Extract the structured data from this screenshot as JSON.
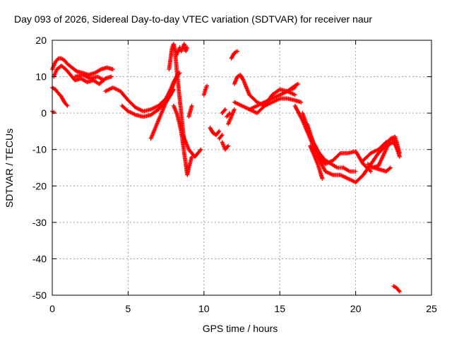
{
  "chart_data": {
    "type": "scatter",
    "title": "Day 093 of 2026, Sidereal Day-to-day VTEC variation (SDTVAR) for receiver naur",
    "xlabel": "GPS time / hours",
    "ylabel": "SDTVAR / TECUs",
    "xlim": [
      0,
      25
    ],
    "ylim": [
      -50,
      20
    ],
    "xticks": [
      0,
      5,
      10,
      15,
      20,
      25
    ],
    "yticks": [
      -50,
      -40,
      -30,
      -20,
      -10,
      0,
      10,
      20
    ],
    "grid": true,
    "marker": "+",
    "color": "#ff0000",
    "series": [
      {
        "name": "s1",
        "x": [
          0.0,
          0.2,
          0.4,
          0.6,
          0.8,
          1.0,
          1.3,
          1.6,
          2.0,
          2.4,
          2.8,
          3.2,
          3.6,
          4.0
        ],
        "y": [
          12,
          14,
          15,
          15,
          14.5,
          13.5,
          12.5,
          11.5,
          11,
          10.5,
          11,
          12,
          12.5,
          12
        ]
      },
      {
        "name": "s2",
        "x": [
          0.1,
          0.3,
          0.6,
          0.9,
          1.2,
          1.5,
          1.9,
          2.3,
          2.7,
          3.1,
          3.5,
          3.9
        ],
        "y": [
          10,
          12,
          13,
          12,
          10.5,
          9,
          9.5,
          8.5,
          9,
          8,
          9.5,
          10
        ]
      },
      {
        "name": "s3",
        "x": [
          0.0,
          0.2,
          0.4,
          0.6,
          0.8,
          1.0
        ],
        "y": [
          7,
          6.5,
          5.5,
          4.5,
          3,
          2
        ]
      },
      {
        "name": "s4",
        "x": [
          0.0,
          0.1
        ],
        "y": [
          0.5,
          0.3
        ]
      },
      {
        "name": "s5",
        "x": [
          1.5,
          2.0,
          2.5,
          3.0,
          3.4
        ],
        "y": [
          10,
          10.5,
          9.5,
          10,
          9
        ]
      },
      {
        "name": "s6",
        "x": [
          3.5,
          4.0,
          4.5,
          5.0,
          5.5,
          6.0,
          6.5,
          7.0,
          7.5,
          7.8,
          8.0,
          8.2,
          8.4
        ],
        "y": [
          6,
          7,
          6,
          3.5,
          1.5,
          0.5,
          1,
          2,
          4,
          6.5,
          8.5,
          10,
          11
        ]
      },
      {
        "name": "s7",
        "x": [
          4.6,
          5.0,
          5.5,
          6.0,
          6.5,
          7.0,
          7.5,
          7.8,
          8.0
        ],
        "y": [
          2,
          0.5,
          -0.5,
          -1,
          -0.5,
          1,
          3,
          5,
          6.5
        ]
      },
      {
        "name": "s8",
        "x": [
          6.5,
          6.8,
          7.1,
          7.4,
          7.7,
          8.0,
          8.3
        ],
        "y": [
          -7,
          -4,
          -1,
          2,
          5,
          8,
          11
        ]
      },
      {
        "name": "s9",
        "x": [
          7.7,
          7.8,
          7.9,
          8.0,
          8.1,
          8.2,
          8.3,
          8.4,
          8.5,
          8.6,
          8.7
        ],
        "y": [
          12,
          15,
          18,
          19,
          17,
          12,
          8,
          4,
          0,
          -4,
          -8
        ]
      },
      {
        "name": "s10",
        "x": [
          8.2,
          8.4,
          8.5,
          8.6,
          8.7,
          8.8,
          8.9
        ],
        "y": [
          16,
          18,
          17,
          18,
          19,
          17,
          18
        ]
      },
      {
        "name": "s11",
        "x": [
          8.0,
          8.2,
          8.4,
          8.5,
          8.6,
          8.7,
          8.8,
          8.9,
          9.0,
          9.2
        ],
        "y": [
          2,
          0,
          -3,
          -5,
          -8,
          -11,
          -14,
          -17,
          -15,
          -12
        ]
      },
      {
        "name": "s12",
        "x": [
          8.6,
          8.8,
          9.0,
          9.2,
          9.4,
          9.6,
          9.8
        ],
        "y": [
          -6,
          -8,
          -10,
          -11,
          -12,
          -11,
          -10
        ]
      },
      {
        "name": "s13",
        "x": [
          9.0,
          9.2
        ],
        "y": [
          -1,
          2
        ]
      },
      {
        "name": "s14",
        "x": [
          10.0,
          10.1,
          10.2
        ],
        "y": [
          5,
          6.5,
          7.5
        ]
      },
      {
        "name": "s15",
        "x": [
          10.4,
          10.6,
          10.8,
          11.0
        ],
        "y": [
          -4,
          -5.5,
          -6,
          -5
        ]
      },
      {
        "name": "s16",
        "x": [
          11.0,
          11.2
        ],
        "y": [
          -7,
          -6
        ]
      },
      {
        "name": "s17",
        "x": [
          11.2,
          11.4,
          11.6
        ],
        "y": [
          -8,
          -10,
          -9
        ]
      },
      {
        "name": "s18",
        "x": [
          11.2,
          11.4
        ],
        "y": [
          0,
          1
        ]
      },
      {
        "name": "s19",
        "x": [
          11.5,
          11.7
        ],
        "y": [
          -1,
          0
        ]
      },
      {
        "name": "s20",
        "x": [
          11.6,
          11.8,
          12.0
        ],
        "y": [
          -3,
          -1,
          1
        ]
      },
      {
        "name": "s21",
        "x": [
          11.8,
          12.0,
          12.2
        ],
        "y": [
          15,
          16.5,
          17
        ]
      },
      {
        "name": "s22",
        "x": [
          12.0,
          12.2,
          12.4,
          12.6,
          12.8,
          13.0,
          13.5,
          14.0,
          14.5,
          15.0,
          15.5,
          16.0,
          16.4
        ],
        "y": [
          8,
          10,
          10.5,
          9,
          7,
          5,
          3,
          2,
          3,
          4,
          4,
          3.5,
          3
        ]
      },
      {
        "name": "s23",
        "x": [
          12.0,
          12.5,
          13.0,
          13.5,
          14.0,
          14.5,
          15.0,
          15.5,
          16.0
        ],
        "y": [
          3,
          2,
          1,
          0,
          2,
          5,
          6.5,
          6,
          5
        ]
      },
      {
        "name": "s24",
        "x": [
          13.0,
          13.5,
          14.0,
          14.5,
          15.0,
          15.5,
          16.0
        ],
        "y": [
          1,
          2,
          3,
          4,
          5,
          6,
          7
        ]
      },
      {
        "name": "s25",
        "x": [
          15.5,
          16.0,
          16.2
        ],
        "y": [
          6,
          7.5,
          8
        ]
      },
      {
        "name": "s26",
        "x": [
          16.0,
          16.5,
          17.0,
          17.5,
          18.0,
          18.5,
          19.0,
          19.5,
          20.0,
          20.5,
          21.0,
          21.5,
          22.0,
          22.5,
          22.8
        ],
        "y": [
          2,
          -2,
          -7,
          -12,
          -16,
          -17,
          -17,
          -18,
          -19,
          -17,
          -14,
          -11,
          -9,
          -8,
          -10
        ]
      },
      {
        "name": "s27",
        "x": [
          16.5,
          17.0,
          17.5,
          18.0,
          18.5,
          19.0,
          19.5,
          20.0,
          20.5,
          21.0
        ],
        "y": [
          0,
          -6,
          -11,
          -14,
          -13,
          -11,
          -11,
          -10.5,
          -14,
          -16
        ]
      },
      {
        "name": "s28",
        "x": [
          16.8,
          17.2,
          17.6,
          18.0,
          18.4,
          18.8,
          19.2,
          19.6,
          20.0
        ],
        "y": [
          -3,
          -8,
          -11,
          -13,
          -14,
          -15,
          -15,
          -16,
          -16
        ]
      },
      {
        "name": "s29",
        "x": [
          17.0,
          17.5,
          17.8
        ],
        "y": [
          -9,
          -14,
          -18
        ]
      },
      {
        "name": "s30",
        "x": [
          20.5,
          21.0,
          21.5,
          22.0,
          22.5,
          22.9
        ],
        "y": [
          -13,
          -11,
          -10,
          -8,
          -7,
          -12
        ]
      },
      {
        "name": "s31",
        "x": [
          21.0,
          21.5,
          22.0,
          22.3,
          22.6,
          22.9
        ],
        "y": [
          -15,
          -14.5,
          -10,
          -7,
          -6.5,
          -11
        ]
      },
      {
        "name": "s32",
        "x": [
          20.8,
          21.2,
          21.6,
          22.0,
          22.3
        ],
        "y": [
          -14,
          -15,
          -15.5,
          -16,
          -15
        ]
      },
      {
        "name": "s33",
        "x": [
          22.5,
          22.7,
          22.9
        ],
        "y": [
          -47.5,
          -48,
          -49
        ]
      }
    ]
  }
}
